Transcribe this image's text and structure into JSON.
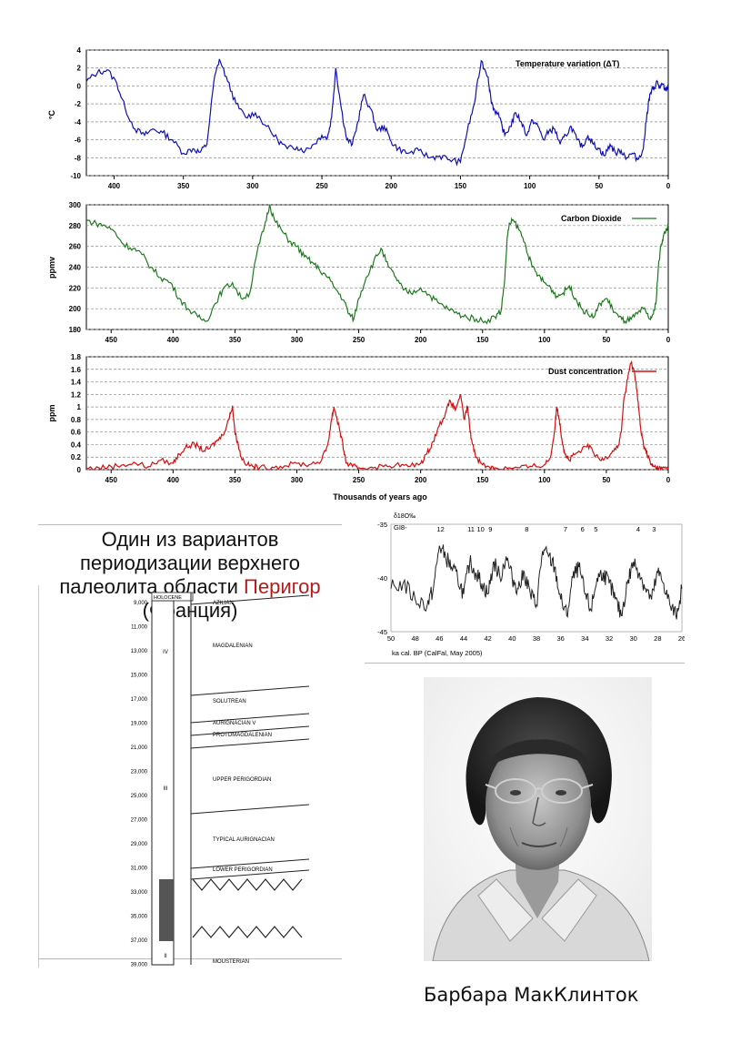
{
  "panels": {
    "temperature": {
      "series_name": "Temperature variation (ΔT)",
      "ylabel": "°C",
      "yticks": [
        "4",
        "2",
        "0",
        "-2",
        "-4",
        "-6",
        "-8",
        "-10"
      ],
      "xticks": [
        "400",
        "350",
        "300",
        "250",
        "200",
        "150",
        "100",
        "50",
        "0"
      ],
      "color": "#1010b4"
    },
    "co2": {
      "series_name": "Carbon Dioxide",
      "ylabel": "ppmv",
      "yticks": [
        "300",
        "280",
        "260",
        "240",
        "220",
        "200",
        "180"
      ],
      "xticks": [
        "450",
        "400",
        "350",
        "300",
        "250",
        "200",
        "150",
        "100",
        "50",
        "0"
      ],
      "color": "#1e7a1e"
    },
    "dust": {
      "series_name": "Dust concentration",
      "ylabel": "ppm",
      "yticks": [
        "1.8",
        "1.6",
        "1.4",
        "1.2",
        "1",
        "0.8",
        "0.6",
        "0.4",
        "0.2",
        "0"
      ],
      "xticks": [
        "450",
        "400",
        "350",
        "300",
        "250",
        "200",
        "150",
        "100",
        "50",
        "0"
      ],
      "xlabel": "Thousands of years ago",
      "color": "#d21010"
    }
  },
  "chart_data": [
    {
      "type": "line",
      "title": "",
      "xlabel": "",
      "ylabel": "°C",
      "xlim": [
        420,
        0
      ],
      "ylim": [
        -10,
        4
      ],
      "series": [
        {
          "name": "Temperature variation (ΔT)",
          "x": [
            420,
            412,
            405,
            398,
            392,
            385,
            378,
            372,
            365,
            358,
            350,
            343,
            338,
            333,
            328,
            324,
            318,
            312,
            305,
            298,
            290,
            282,
            275,
            268,
            262,
            256,
            250,
            246,
            243,
            240,
            236,
            232,
            228,
            224,
            220,
            215,
            210,
            205,
            200,
            195,
            188,
            180,
            172,
            165,
            158,
            150,
            145,
            140,
            135,
            130,
            128,
            126,
            122,
            118,
            114,
            110,
            106,
            102,
            98,
            94,
            90,
            86,
            82,
            78,
            74,
            70,
            66,
            62,
            58,
            54,
            50,
            46,
            42,
            38,
            34,
            30,
            26,
            22,
            18,
            16,
            14,
            12,
            10,
            8,
            6,
            4,
            2,
            0
          ],
          "y": [
            0.5,
            1.5,
            1.8,
            0.3,
            -2.5,
            -4.8,
            -5.5,
            -4.8,
            -5.2,
            -6.0,
            -7.5,
            -7.0,
            -7.4,
            -6.5,
            0.5,
            3.0,
            0.5,
            -2.0,
            -3.5,
            -3.0,
            -4.5,
            -6.0,
            -7.0,
            -6.8,
            -7.2,
            -6.5,
            -5.5,
            -5.8,
            -3.5,
            2.0,
            -2.5,
            -6.0,
            -6.5,
            -4.0,
            -1.0,
            -2.5,
            -5.0,
            -4.5,
            -6.2,
            -7.0,
            -7.5,
            -7.2,
            -8.0,
            -7.8,
            -8.2,
            -8.5,
            -5.0,
            -2.0,
            2.8,
            1.0,
            -1.5,
            -2.5,
            -3.5,
            -5.5,
            -4.5,
            -3.0,
            -4.0,
            -5.5,
            -3.8,
            -4.5,
            -6.0,
            -5.0,
            -4.8,
            -6.5,
            -5.5,
            -4.5,
            -6.0,
            -6.8,
            -5.5,
            -6.5,
            -7.0,
            -7.8,
            -6.5,
            -7.5,
            -7.2,
            -8.0,
            -7.5,
            -8.2,
            -7.0,
            -4.0,
            -1.5,
            -0.5,
            -0.2,
            0.5,
            -0.3,
            0.2,
            -0.5,
            0.0
          ]
        }
      ]
    },
    {
      "type": "line",
      "title": "",
      "xlabel": "",
      "ylabel": "ppmv",
      "xlim": [
        470,
        0
      ],
      "ylim": [
        180,
        300
      ],
      "series": [
        {
          "name": "Carbon Dioxide",
          "x": [
            470,
            462,
            455,
            448,
            440,
            432,
            425,
            418,
            410,
            402,
            395,
            388,
            380,
            373,
            366,
            360,
            352,
            345,
            338,
            332,
            326,
            322,
            318,
            312,
            306,
            300,
            294,
            288,
            282,
            275,
            268,
            262,
            258,
            254,
            250,
            244,
            238,
            232,
            226,
            220,
            214,
            208,
            200,
            192,
            185,
            178,
            170,
            163,
            155,
            148,
            140,
            135,
            132,
            130,
            128,
            125,
            120,
            115,
            110,
            105,
            100,
            95,
            90,
            85,
            80,
            75,
            70,
            65,
            60,
            55,
            50,
            45,
            40,
            35,
            30,
            25,
            20,
            15,
            12,
            10,
            8,
            6,
            4,
            2,
            0
          ],
          "y": [
            285,
            282,
            280,
            275,
            262,
            258,
            252,
            240,
            230,
            225,
            210,
            200,
            192,
            188,
            205,
            218,
            225,
            210,
            215,
            255,
            280,
            300,
            285,
            275,
            265,
            260,
            250,
            245,
            238,
            230,
            218,
            208,
            195,
            190,
            210,
            230,
            245,
            258,
            240,
            230,
            218,
            215,
            220,
            212,
            205,
            200,
            195,
            192,
            190,
            188,
            192,
            198,
            230,
            270,
            282,
            285,
            275,
            260,
            240,
            232,
            225,
            220,
            212,
            215,
            222,
            210,
            200,
            195,
            192,
            205,
            210,
            200,
            192,
            188,
            190,
            195,
            200,
            190,
            195,
            205,
            240,
            260,
            270,
            275,
            280
          ]
        }
      ]
    },
    {
      "type": "line",
      "title": "",
      "xlabel": "Thousands of years ago",
      "ylabel": "ppm",
      "xlim": [
        470,
        0
      ],
      "ylim": [
        0,
        1.8
      ],
      "series": [
        {
          "name": "Dust concentration",
          "x": [
            470,
            460,
            450,
            440,
            430,
            420,
            410,
            400,
            395,
            390,
            385,
            380,
            375,
            370,
            365,
            360,
            355,
            352,
            350,
            348,
            345,
            340,
            335,
            330,
            320,
            310,
            300,
            290,
            280,
            275,
            272,
            270,
            268,
            265,
            262,
            260,
            255,
            250,
            240,
            230,
            220,
            210,
            200,
            195,
            190,
            185,
            180,
            176,
            172,
            168,
            165,
            162,
            160,
            158,
            155,
            150,
            145,
            140,
            130,
            120,
            110,
            100,
            95,
            92,
            90,
            88,
            86,
            84,
            82,
            80,
            75,
            70,
            65,
            60,
            55,
            50,
            45,
            40,
            38,
            36,
            34,
            32,
            30,
            28,
            26,
            24,
            22,
            20,
            18,
            16,
            14,
            12,
            10,
            8,
            5,
            0
          ],
          "y": [
            0.02,
            0.03,
            0.05,
            0.08,
            0.1,
            0.05,
            0.15,
            0.1,
            0.25,
            0.35,
            0.4,
            0.38,
            0.3,
            0.35,
            0.45,
            0.55,
            0.8,
            1.02,
            0.6,
            0.45,
            0.2,
            0.08,
            0.05,
            0.03,
            0.04,
            0.06,
            0.1,
            0.08,
            0.15,
            0.4,
            0.8,
            1.0,
            0.85,
            0.6,
            0.3,
            0.1,
            0.05,
            0.03,
            0.04,
            0.05,
            0.08,
            0.05,
            0.1,
            0.25,
            0.45,
            0.7,
            0.9,
            1.1,
            0.95,
            1.2,
            0.8,
            1.0,
            0.6,
            0.4,
            0.2,
            0.08,
            0.05,
            0.03,
            0.02,
            0.03,
            0.05,
            0.08,
            0.2,
            0.6,
            1.0,
            0.8,
            0.5,
            0.3,
            0.2,
            0.15,
            0.25,
            0.3,
            0.4,
            0.25,
            0.15,
            0.2,
            0.3,
            0.4,
            0.6,
            1.1,
            1.3,
            1.55,
            1.7,
            1.6,
            1.4,
            1.0,
            0.6,
            0.4,
            0.3,
            0.2,
            0.08,
            0.05,
            0.03,
            0.02,
            0.02,
            0.02
          ]
        }
      ]
    },
    {
      "type": "line",
      "title": "",
      "xlabel": "ka cal. BP (CalFal, May 2005)",
      "ylabel": "δ18O‰",
      "xlim": [
        50,
        26
      ],
      "ylim": [
        -45,
        -35
      ],
      "series": [
        {
          "name": "GI8-",
          "x": [
            50,
            49,
            48,
            47,
            46.5,
            46,
            45.5,
            45,
            44.5,
            44,
            43.5,
            43,
            42.5,
            42,
            41.5,
            41,
            40.5,
            40,
            39.5,
            39,
            38.5,
            38,
            37.5,
            37,
            36.5,
            36,
            35.5,
            35,
            34.5,
            34,
            33.5,
            33,
            32.5,
            32,
            31.5,
            31,
            30.5,
            30,
            29.5,
            29,
            28.5,
            28,
            27.5,
            27,
            26.5,
            26
          ],
          "y": [
            -41,
            -40.5,
            -42,
            -42.5,
            -41,
            -37,
            -38,
            -39,
            -40,
            -41.5,
            -38.5,
            -39.5,
            -40.5,
            -41.5,
            -38.5,
            -40,
            -38,
            -40,
            -41,
            -39.5,
            -41.5,
            -42.5,
            -37.5,
            -38,
            -39,
            -42,
            -43.5,
            -40,
            -39,
            -41.5,
            -43,
            -40,
            -39.5,
            -40.5,
            -42,
            -43.5,
            -40.5,
            -38.5,
            -39.5,
            -41,
            -42,
            -39.5,
            -40.5,
            -42.5,
            -43.5,
            -41
          ]
        }
      ]
    }
  ],
  "strat": {
    "title_line1": "Один из вариантов периодизации верхнего",
    "title_line2_a": "палеолита области ",
    "title_line2_b": "Перигор",
    "title_line2_c": " (Франция)",
    "years": [
      "9,000",
      "11,000",
      "13,000",
      "15,000",
      "17,000",
      "19,000",
      "21,000",
      "23,000",
      "25,000",
      "27,000",
      "29,000",
      "31,000",
      "33,000",
      "35,000",
      "37,000",
      "39,000"
    ],
    "header": "HOLOCENE",
    "sections": [
      "AZILIAN",
      "MAGDALENIAN",
      "SOLUTREAN",
      "AURIGNACIAN V",
      "PROTOMAGDALENIAN",
      "UPPER PERIGORDIAN",
      "TYPICAL AURIGNACIAN",
      "LOWER PERIGORDIAN",
      "MOUSTERIAN"
    ],
    "roman_left": [
      "IV",
      "III",
      "II"
    ]
  },
  "isotope": {
    "ylabel": "δ18O‰",
    "yticks": [
      "-35",
      "-40",
      "-45"
    ],
    "xticks": [
      "50",
      "48",
      "46",
      "44",
      "42",
      "40",
      "38",
      "36",
      "34",
      "32",
      "30",
      "28",
      "26"
    ],
    "events": [
      "12",
      "11",
      "10",
      "9",
      "8",
      "7",
      "6",
      "5",
      "4",
      "3"
    ],
    "label_gi": "GI8-",
    "xlabel": "ka cal. BP (CalFal, May 2005)"
  },
  "photo": {
    "caption": "Барбара МакКлинток"
  }
}
